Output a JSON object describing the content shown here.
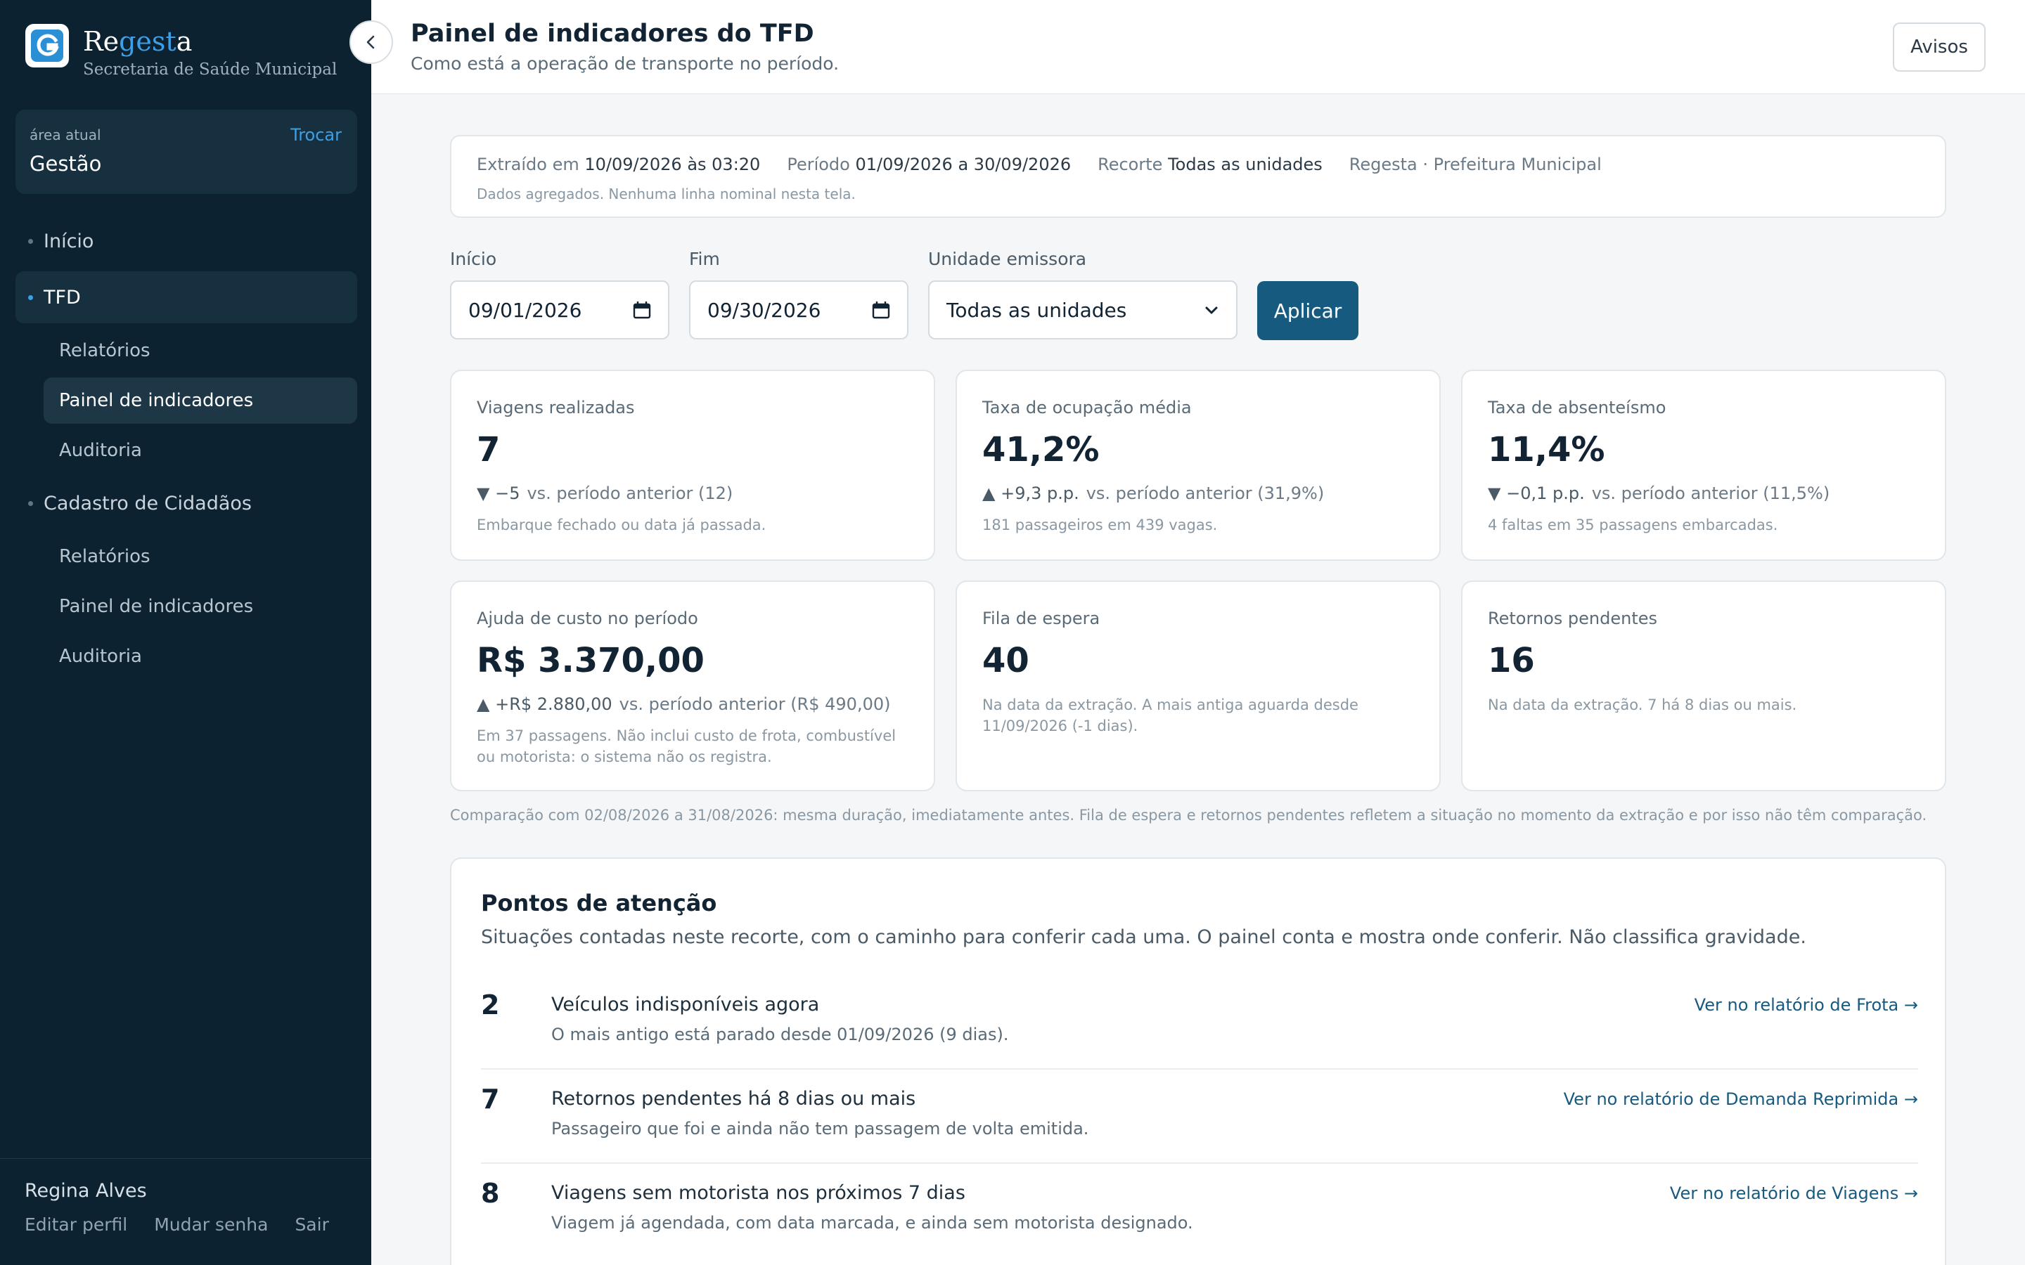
{
  "brand": {
    "name_part1": "Re",
    "name_part2": "gest",
    "name_part3": "a",
    "subtitle": "Secretaria de Saúde Municipal"
  },
  "area": {
    "label": "área atual",
    "value": "Gestão",
    "switch_label": "Trocar"
  },
  "nav": {
    "inicio": "Início",
    "tfd": "TFD",
    "tfd_sub": [
      "Relatórios",
      "Painel de indicadores",
      "Auditoria"
    ],
    "cadastro": "Cadastro de Cidadãos",
    "cadastro_sub": [
      "Relatórios",
      "Painel de indicadores",
      "Auditoria"
    ]
  },
  "user": {
    "name": "Regina Alves",
    "edit_profile": "Editar perfil",
    "change_password": "Mudar senha",
    "logout": "Sair"
  },
  "header": {
    "title": "Painel de indicadores do TFD",
    "subtitle": "Como está a operação de transporte no período.",
    "alerts_label": "Avisos"
  },
  "meta": {
    "extracted_label": "Extraído em",
    "extracted_value": "10/09/2026 às 03:20",
    "period_label": "Período",
    "period_value": "01/09/2026 a 30/09/2026",
    "cut_label": "Recorte",
    "cut_value": "Todas as unidades",
    "org": "Regesta · Prefeitura Municipal",
    "note": "Dados agregados. Nenhuma linha nominal nesta tela."
  },
  "filters": {
    "start_label": "Início",
    "start_value": "09/01/2026",
    "end_label": "Fim",
    "end_value": "09/30/2026",
    "unit_label": "Unidade emissora",
    "unit_value": "Todas as unidades",
    "apply_label": "Aplicar"
  },
  "cards": [
    {
      "label": "Viagens realizadas",
      "value": "7",
      "delta": "▼ −5",
      "vs": "vs. período anterior (12)",
      "note": "Embarque fechado ou data já passada."
    },
    {
      "label": "Taxa de ocupação média",
      "value": "41,2%",
      "delta": "▲ +9,3 p.p.",
      "vs": "vs. período anterior (31,9%)",
      "note": "181 passageiros em 439 vagas."
    },
    {
      "label": "Taxa de absenteísmo",
      "value": "11,4%",
      "delta": "▼ −0,1 p.p.",
      "vs": "vs. período anterior (11,5%)",
      "note": "4 faltas em 35 passagens embarcadas."
    },
    {
      "label": "Ajuda de custo no período",
      "value": "R$ 3.370,00",
      "delta": "▲ +R$ 2.880,00",
      "vs": "vs. período anterior (R$ 490,00)",
      "note": "Em 37 passagens. Não inclui custo de frota, combustível ou motorista: o sistema não os registra."
    },
    {
      "label": "Fila de espera",
      "value": "40",
      "note": "Na data da extração. A mais antiga aguarda desde 11/09/2026 (-1 dias)."
    },
    {
      "label": "Retornos pendentes",
      "value": "16",
      "note": "Na data da extração. 7 há 8 dias ou mais."
    }
  ],
  "compare_note": "Comparação com 02/08/2026 a 31/08/2026: mesma duração, imediatamente antes. Fila de espera e retornos pendentes refletem a situação no momento da extração e por isso não têm comparação.",
  "attention": {
    "title": "Pontos de atenção",
    "subtitle": "Situações contadas neste recorte, com o caminho para conferir cada uma. O painel conta e mostra onde conferir. Não classifica gravidade.",
    "rows": [
      {
        "count": "2",
        "title": "Veículos indisponíveis agora",
        "desc": "O mais antigo está parado desde 01/09/2026 (9 dias).",
        "link": "Ver no relatório de Frota →"
      },
      {
        "count": "7",
        "title": "Retornos pendentes há 8 dias ou mais",
        "desc": "Passageiro que foi e ainda não tem passagem de volta emitida.",
        "link": "Ver no relatório de Demanda Reprimida →"
      },
      {
        "count": "8",
        "title": "Viagens sem motorista nos próximos 7 dias",
        "desc": "Viagem já agendada, com data marcada, e ainda sem motorista designado.",
        "link": "Ver no relatório de Viagens →"
      }
    ]
  },
  "colors": {
    "sidebar_bg": "#0d2231",
    "accent": "#3da0e6",
    "primary_button": "#175a80"
  }
}
